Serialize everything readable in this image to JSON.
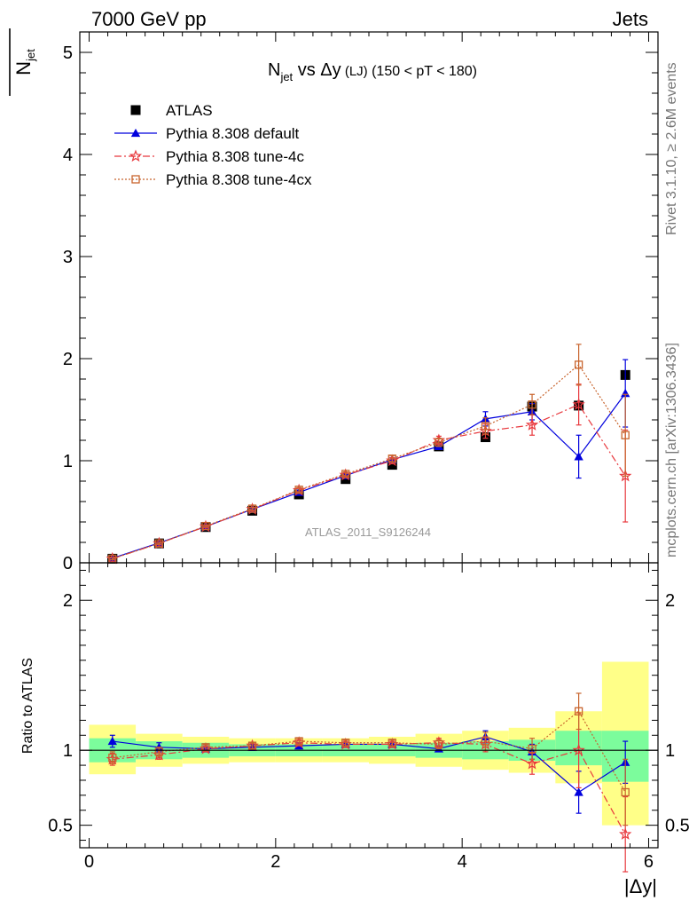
{
  "header": {
    "left": "7000 GeV pp",
    "right": "Jets"
  },
  "side_labels": {
    "rivet": "Rivet 3.1.10, ≥ 2.6M events",
    "mcplots": "mcplots.cern.ch [arXiv:1306.3436]"
  },
  "plot_title": {
    "main": "N",
    "sub": "jet",
    "rest": " vs Δy",
    "small": " (LJ)",
    "cut": " (150 < pT < 180)"
  },
  "analysis_label": "ATLAS_2011_S9126244",
  "colors": {
    "data": "#000000",
    "default": "#0000dd",
    "tune4c": "#e8383d",
    "tune4cx": "#c8642d",
    "band_inner": "#7cfc9c",
    "band_outer": "#ffff88"
  },
  "chart_data": [
    {
      "type": "scatter",
      "panel": "main",
      "ylabel_main": "N",
      "ylabel_sub": "jet",
      "xlim": [
        -0.1,
        6.1
      ],
      "ylim": [
        0,
        5.2
      ],
      "yticks": [
        0,
        1,
        2,
        3,
        4,
        5
      ],
      "ytick_labels": [
        "0",
        "1",
        "2",
        "3",
        "4",
        "5"
      ],
      "legend_placement": "top-left",
      "x": [
        0.25,
        0.75,
        1.25,
        1.75,
        2.25,
        2.75,
        3.25,
        3.75,
        4.25,
        4.75,
        5.25,
        5.75
      ],
      "series": [
        {
          "name": "ATLAS",
          "key": "data",
          "marker": "filled-square",
          "values": [
            0.04,
            0.19,
            0.35,
            0.51,
            0.67,
            0.82,
            0.96,
            1.14,
            1.23,
            1.53,
            1.54,
            1.84
          ]
        },
        {
          "name": "Pythia 8.308 default",
          "key": "default",
          "marker": "filled-triangle",
          "line": "solid",
          "values": [
            0.045,
            0.195,
            0.355,
            0.525,
            0.69,
            0.855,
            1.01,
            1.14,
            1.41,
            1.48,
            1.04,
            1.66
          ],
          "errors": [
            0.01,
            0.01,
            0.01,
            0.015,
            0.02,
            0.02,
            0.02,
            0.03,
            0.07,
            0.08,
            0.21,
            0.33
          ]
        },
        {
          "name": "Pythia 8.308 tune-4c",
          "key": "tune4c",
          "marker": "open-star",
          "line": "dash-dot",
          "values": [
            0.04,
            0.19,
            0.355,
            0.525,
            0.71,
            0.86,
            1.0,
            1.2,
            1.29,
            1.35,
            1.55,
            0.85
          ],
          "errors": [
            0.01,
            0.01,
            0.01,
            0.015,
            0.02,
            0.02,
            0.03,
            0.04,
            0.07,
            0.1,
            0.2,
            0.45
          ]
        },
        {
          "name": "Pythia 8.308 tune-4cx",
          "key": "tune4cx",
          "marker": "open-square",
          "line": "dotted",
          "values": [
            0.04,
            0.19,
            0.36,
            0.53,
            0.715,
            0.87,
            1.02,
            1.18,
            1.34,
            1.55,
            1.94,
            1.25
          ],
          "errors": [
            0.01,
            0.01,
            0.01,
            0.015,
            0.02,
            0.02,
            0.03,
            0.04,
            0.08,
            0.1,
            0.2,
            0.4
          ]
        }
      ]
    },
    {
      "type": "scatter",
      "panel": "ratio",
      "ylabel": "Ratio to ATLAS",
      "xlabel": "|Δy|",
      "xlim": [
        -0.1,
        6.1
      ],
      "ylim": [
        0.35,
        2.25
      ],
      "xticks": [
        0,
        2,
        4,
        6
      ],
      "xtick_labels": [
        "0",
        "2",
        "4",
        "6"
      ],
      "yticks": [
        0.5,
        1,
        2
      ],
      "ytick_labels": [
        "0.5",
        "1",
        "2"
      ],
      "bin_edges": [
        0,
        0.5,
        1,
        1.5,
        2,
        2.5,
        3,
        3.5,
        4,
        4.5,
        5,
        5.5,
        6
      ],
      "band_inner": [
        [
          0.92,
          1.08
        ],
        [
          0.94,
          1.06
        ],
        [
          0.95,
          1.05
        ],
        [
          0.96,
          1.04
        ],
        [
          0.96,
          1.04
        ],
        [
          0.96,
          1.04
        ],
        [
          0.96,
          1.04
        ],
        [
          0.95,
          1.05
        ],
        [
          0.94,
          1.06
        ],
        [
          0.93,
          1.07
        ],
        [
          0.9,
          1.13
        ],
        [
          0.79,
          1.13
        ]
      ],
      "band_outer": [
        [
          0.84,
          1.17
        ],
        [
          0.89,
          1.11
        ],
        [
          0.91,
          1.09
        ],
        [
          0.92,
          1.08
        ],
        [
          0.92,
          1.08
        ],
        [
          0.92,
          1.08
        ],
        [
          0.91,
          1.09
        ],
        [
          0.89,
          1.11
        ],
        [
          0.87,
          1.13
        ],
        [
          0.85,
          1.15
        ],
        [
          0.78,
          1.26
        ],
        [
          0.5,
          1.59
        ]
      ],
      "x": [
        0.25,
        0.75,
        1.25,
        1.75,
        2.25,
        2.75,
        3.25,
        3.75,
        4.25,
        4.75,
        5.25,
        5.75
      ],
      "series": [
        {
          "name": "Pythia 8.308 default",
          "key": "default",
          "marker": "filled-triangle",
          "line": "solid",
          "values": [
            1.06,
            1.02,
            1.01,
            1.02,
            1.03,
            1.04,
            1.04,
            1.01,
            1.09,
            0.99,
            0.72,
            0.92
          ],
          "errors": [
            0.04,
            0.03,
            0.02,
            0.02,
            0.02,
            0.02,
            0.02,
            0.02,
            0.04,
            0.05,
            0.14,
            0.14
          ]
        },
        {
          "name": "Pythia 8.308 tune-4c",
          "key": "tune4c",
          "marker": "open-star",
          "line": "dash-dot",
          "values": [
            0.94,
            0.97,
            1.01,
            1.03,
            1.05,
            1.04,
            1.04,
            1.05,
            1.04,
            0.91,
            1.0,
            0.44
          ],
          "errors": [
            0.04,
            0.03,
            0.02,
            0.02,
            0.02,
            0.02,
            0.02,
            0.03,
            0.05,
            0.07,
            0.25,
            0.25
          ]
        },
        {
          "name": "Pythia 8.308 tune-4cx",
          "key": "tune4cx",
          "marker": "open-square",
          "line": "dotted",
          "values": [
            0.95,
            0.99,
            1.02,
            1.03,
            1.06,
            1.05,
            1.05,
            1.04,
            1.06,
            1.01,
            1.26,
            0.72
          ],
          "errors": [
            0.04,
            0.03,
            0.02,
            0.02,
            0.02,
            0.02,
            0.02,
            0.03,
            0.06,
            0.07,
            0.12,
            0.22
          ]
        }
      ]
    }
  ]
}
